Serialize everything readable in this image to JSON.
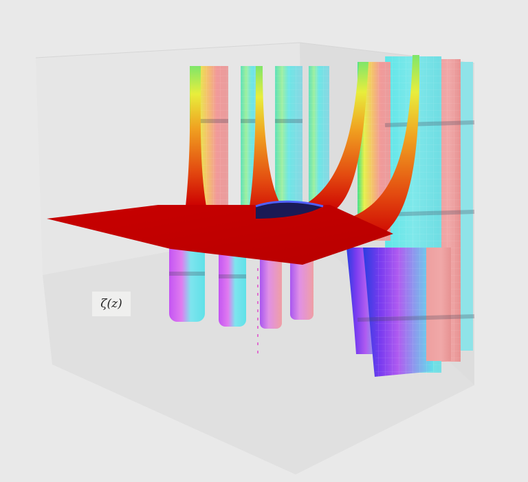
{
  "scene": {
    "label": "ζ(z)",
    "background": "#e9e9e9",
    "box_color": "#dcdcdc",
    "plane_color": "#cc0000",
    "tube_colors": [
      "#5fe6e6",
      "#ef9a9a"
    ],
    "colormap": "hue-phase"
  }
}
